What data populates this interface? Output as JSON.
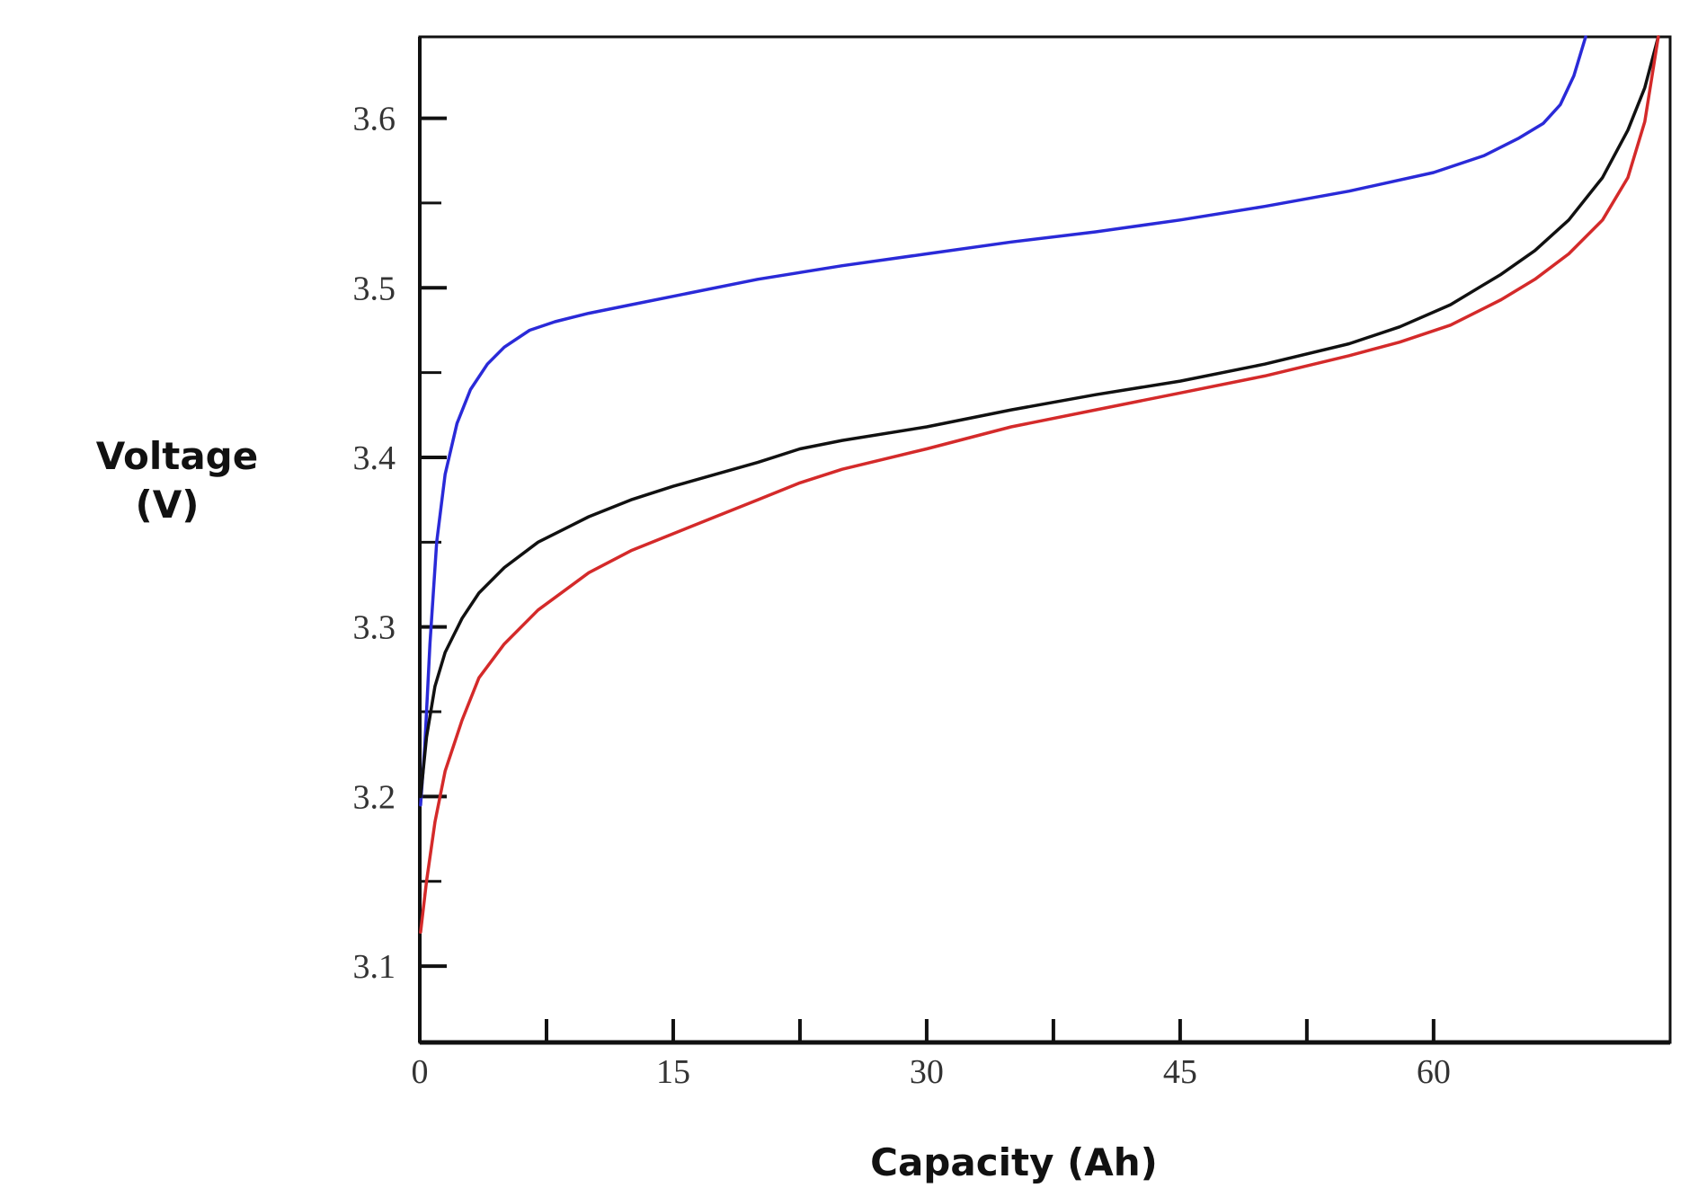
{
  "chart_data": {
    "type": "line",
    "xlabel": "Capacity (Ah)",
    "ylabel_line1": "Voltage",
    "ylabel_line2": "(V)",
    "xlim": [
      0,
      74
    ],
    "ylim": [
      3.055,
      3.648
    ],
    "x_ticks": [
      0,
      7.5,
      15,
      22.5,
      30,
      37.5,
      45,
      52.5,
      60
    ],
    "x_tick_labels": [
      {
        "value": 0,
        "label": "0"
      },
      {
        "value": 15,
        "label": "15"
      },
      {
        "value": 30,
        "label": "30"
      },
      {
        "value": 45,
        "label": "45"
      },
      {
        "value": 60,
        "label": "60"
      }
    ],
    "y_ticks": [
      3.1,
      3.15,
      3.2,
      3.25,
      3.3,
      3.35,
      3.4,
      3.45,
      3.5,
      3.55,
      3.6
    ],
    "y_tick_labels": [
      {
        "value": 3.1,
        "label": "3.1"
      },
      {
        "value": 3.2,
        "label": "3.2"
      },
      {
        "value": 3.3,
        "label": "3.3"
      },
      {
        "value": 3.4,
        "label": "3.4"
      },
      {
        "value": 3.5,
        "label": "3.5"
      },
      {
        "value": 3.6,
        "label": "3.6"
      }
    ],
    "grid": false,
    "legend": "none",
    "series": [
      {
        "color": "#2a2ad8",
        "points": [
          [
            0.05,
            3.195
          ],
          [
            0.3,
            3.23
          ],
          [
            0.6,
            3.29
          ],
          [
            1.0,
            3.35
          ],
          [
            1.5,
            3.39
          ],
          [
            2.2,
            3.42
          ],
          [
            3.0,
            3.44
          ],
          [
            4.0,
            3.455
          ],
          [
            5.0,
            3.465
          ],
          [
            6.5,
            3.475
          ],
          [
            8.0,
            3.48
          ],
          [
            10.0,
            3.485
          ],
          [
            12.5,
            3.49
          ],
          [
            15,
            3.495
          ],
          [
            20,
            3.505
          ],
          [
            25,
            3.513
          ],
          [
            30,
            3.52
          ],
          [
            35,
            3.527
          ],
          [
            40,
            3.533
          ],
          [
            45,
            3.54
          ],
          [
            50,
            3.548
          ],
          [
            55,
            3.557
          ],
          [
            60,
            3.568
          ],
          [
            63,
            3.578
          ],
          [
            65,
            3.588
          ],
          [
            66.5,
            3.597
          ],
          [
            67.5,
            3.608
          ],
          [
            68.3,
            3.625
          ],
          [
            69,
            3.648
          ]
        ]
      },
      {
        "color": "#111111",
        "points": [
          [
            0.05,
            3.2
          ],
          [
            0.4,
            3.235
          ],
          [
            0.9,
            3.265
          ],
          [
            1.5,
            3.285
          ],
          [
            2.5,
            3.305
          ],
          [
            3.5,
            3.32
          ],
          [
            5.0,
            3.335
          ],
          [
            7.0,
            3.35
          ],
          [
            10.0,
            3.365
          ],
          [
            12.5,
            3.375
          ],
          [
            15,
            3.383
          ],
          [
            17.5,
            3.39
          ],
          [
            20,
            3.397
          ],
          [
            22.5,
            3.405
          ],
          [
            25,
            3.41
          ],
          [
            30,
            3.418
          ],
          [
            35,
            3.428
          ],
          [
            40,
            3.437
          ],
          [
            45,
            3.445
          ],
          [
            50,
            3.455
          ],
          [
            55,
            3.467
          ],
          [
            58,
            3.477
          ],
          [
            61,
            3.49
          ],
          [
            64,
            3.508
          ],
          [
            66,
            3.522
          ],
          [
            68,
            3.54
          ],
          [
            70,
            3.565
          ],
          [
            71.5,
            3.593
          ],
          [
            72.5,
            3.618
          ],
          [
            73.3,
            3.648
          ]
        ]
      },
      {
        "color": "#d42a2a",
        "points": [
          [
            0.05,
            3.12
          ],
          [
            0.4,
            3.15
          ],
          [
            0.9,
            3.185
          ],
          [
            1.5,
            3.215
          ],
          [
            2.5,
            3.245
          ],
          [
            3.5,
            3.27
          ],
          [
            5.0,
            3.29
          ],
          [
            7.0,
            3.31
          ],
          [
            10.0,
            3.332
          ],
          [
            12.5,
            3.345
          ],
          [
            15,
            3.355
          ],
          [
            17.5,
            3.365
          ],
          [
            20,
            3.375
          ],
          [
            22.5,
            3.385
          ],
          [
            25,
            3.393
          ],
          [
            30,
            3.405
          ],
          [
            35,
            3.418
          ],
          [
            40,
            3.428
          ],
          [
            45,
            3.438
          ],
          [
            50,
            3.448
          ],
          [
            55,
            3.46
          ],
          [
            58,
            3.468
          ],
          [
            61,
            3.478
          ],
          [
            64,
            3.493
          ],
          [
            66,
            3.505
          ],
          [
            68,
            3.52
          ],
          [
            70,
            3.54
          ],
          [
            71.5,
            3.565
          ],
          [
            72.5,
            3.598
          ],
          [
            73.3,
            3.648
          ]
        ]
      }
    ]
  }
}
